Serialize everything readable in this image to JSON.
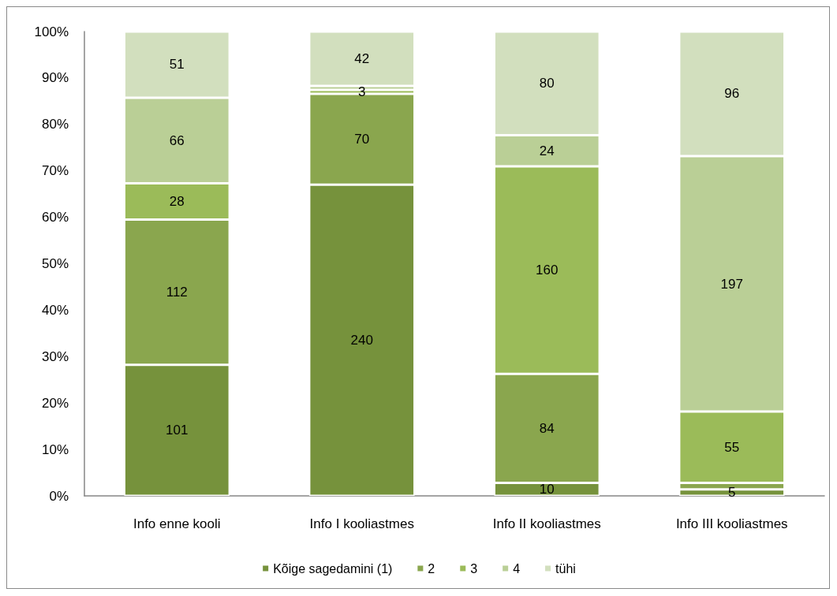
{
  "chart_data": {
    "type": "bar",
    "stacked": true,
    "categories": [
      "Info enne kooli",
      "Info I kooliastmes",
      "Info II kooliastmes",
      "Info III kooliastmes"
    ],
    "ylim": [
      0,
      100
    ],
    "yticks": [
      {
        "value": 0,
        "label": "0%"
      },
      {
        "value": 10,
        "label": "10%"
      },
      {
        "value": 20,
        "label": "20%"
      },
      {
        "value": 30,
        "label": "30%"
      },
      {
        "value": 40,
        "label": "40%"
      },
      {
        "value": 50,
        "label": "50%"
      },
      {
        "value": 60,
        "label": "60%"
      },
      {
        "value": 70,
        "label": "70%"
      },
      {
        "value": 80,
        "label": "80%"
      },
      {
        "value": 90,
        "label": "90%"
      },
      {
        "value": 100,
        "label": "100%"
      }
    ],
    "y2lim": [
      0,
      358
    ],
    "series": [
      {
        "name": "Kõige sagedamini (1)",
        "color": "#76923c",
        "axis": "y2",
        "values": [
          101,
          240,
          10,
          5
        ],
        "value_labels": [
          "101",
          "240",
          "10",
          "5"
        ]
      },
      {
        "name": "2",
        "color": "#8aa64e",
        "axis": "y2",
        "values": [
          112,
          70,
          84,
          5
        ],
        "value_labels": [
          "112",
          "70",
          "84",
          null
        ]
      },
      {
        "name": "3",
        "color": "#9bbb59",
        "axis": "y2",
        "values": [
          28,
          3,
          160,
          55
        ],
        "value_labels": [
          "28",
          "3",
          "160",
          "55"
        ]
      },
      {
        "name": "4",
        "color": "#bacf96",
        "axis": "y2",
        "values": [
          66,
          3,
          24,
          197
        ],
        "value_labels": [
          "66",
          null,
          "24",
          "197"
        ]
      },
      {
        "name": "tühi",
        "color": "#d2dfbe",
        "axis": "y2",
        "values": [
          51,
          42,
          80,
          96
        ],
        "value_labels": [
          "51",
          "42",
          "80",
          "96"
        ]
      }
    ],
    "legend": "bottom"
  }
}
